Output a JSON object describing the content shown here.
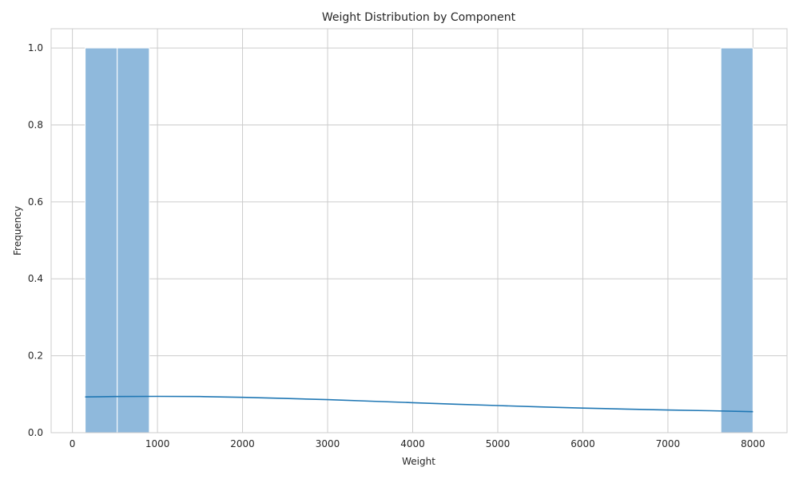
{
  "chart_data": {
    "type": "bar",
    "title": "Weight Distribution by Component",
    "xlabel": "Weight",
    "ylabel": "Frequency",
    "xlim": [
      -250,
      8400
    ],
    "ylim": [
      0,
      1.05
    ],
    "xticks": [
      0,
      1000,
      2000,
      3000,
      4000,
      5000,
      6000,
      7000,
      8000
    ],
    "yticks": [
      0.0,
      0.2,
      0.4,
      0.6,
      0.8,
      1.0
    ],
    "bins": [
      {
        "x0": 150,
        "x1": 527,
        "count": 1
      },
      {
        "x0": 527,
        "x1": 904,
        "count": 1
      },
      {
        "x0": 7623,
        "x1": 8000,
        "count": 1
      }
    ],
    "kde": {
      "x": [
        150,
        500,
        1000,
        1500,
        2000,
        2500,
        3000,
        3500,
        4000,
        4500,
        5000,
        5500,
        6000,
        6500,
        7000,
        7500,
        8000
      ],
      "y": [
        0.093,
        0.094,
        0.0945,
        0.094,
        0.092,
        0.089,
        0.086,
        0.082,
        0.078,
        0.074,
        0.0705,
        0.067,
        0.064,
        0.0615,
        0.059,
        0.057,
        0.0545
      ]
    },
    "grid": true,
    "colors": {
      "bar_fill": "#8fb9dc",
      "bar_edge": "#ffffff",
      "kde_line": "#1f77b4",
      "grid": "#cccccc",
      "text": "#262626"
    }
  }
}
